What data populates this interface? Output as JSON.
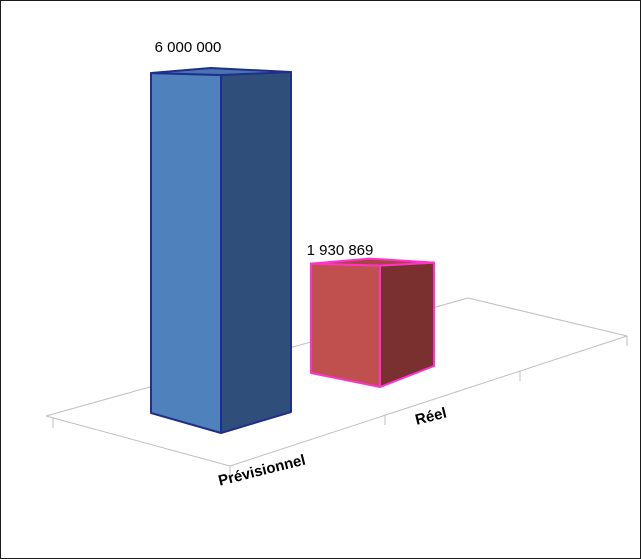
{
  "chart_data": {
    "type": "bar",
    "style": "3d-column",
    "categories": [
      "Prévisionnel",
      "Réel"
    ],
    "values": [
      6000000,
      1930869
    ],
    "data_labels": [
      "6 000 000",
      "1 930 869"
    ],
    "title": "",
    "xlabel": "",
    "ylabel": "",
    "ylim": [
      0,
      6000000
    ],
    "grid": false,
    "legend": "none",
    "colors": {
      "bar_fill": [
        "#4F81BD",
        "#C0504D"
      ],
      "bar_side": [
        "#2F4F7A",
        "#7A302E"
      ],
      "bar_top": [
        "#4A74B0",
        "#A94442"
      ],
      "bar_outline": [
        "#1F2F8C",
        "#FF33CC"
      ],
      "floor_line": "#BFBFBF"
    }
  }
}
